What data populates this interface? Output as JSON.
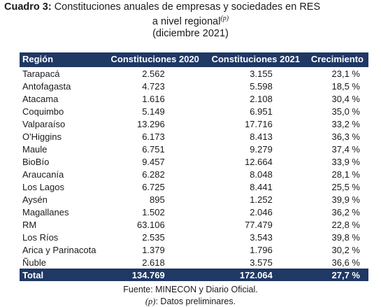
{
  "header": {
    "label": "Cuadro 3:",
    "title": "Constituciones anuales de empresas y sociedades en RES",
    "subtitle": "a nivel regional",
    "subtitle_mark": "(p)",
    "date": "(diciembre 2021)"
  },
  "table": {
    "columns": [
      "Región",
      "Constituciones 2020",
      "Constituciones 2021",
      "Crecimiento"
    ],
    "rows": [
      [
        "Tarapacá",
        "2.562",
        "3.155",
        "23,1 %"
      ],
      [
        "Antofagasta",
        "4.723",
        "5.598",
        "18,5 %"
      ],
      [
        "Atacama",
        "1.616",
        "2.108",
        "30,4 %"
      ],
      [
        "Coquimbo",
        "5.149",
        "6.951",
        "35,0 %"
      ],
      [
        "Valparaíso",
        "13.296",
        "17.716",
        "33,2 %"
      ],
      [
        "O'Higgins",
        "6.173",
        "8.413",
        "36,3 %"
      ],
      [
        "Maule",
        "6.751",
        "9.279",
        "37,4 %"
      ],
      [
        "BioBío",
        "9.457",
        "12.664",
        "33,9 %"
      ],
      [
        "Araucanía",
        "6.282",
        "8.048",
        "28,1 %"
      ],
      [
        "Los Lagos",
        "6.725",
        "8.441",
        "25,5 %"
      ],
      [
        "Aysén",
        "895",
        "1.252",
        "39,9 %"
      ],
      [
        "Magallanes",
        "1.502",
        "2.046",
        "36,2 %"
      ],
      [
        "RM",
        "63.106",
        "77.479",
        "22,8 %"
      ],
      [
        "Los Ríos",
        "2.535",
        "3.543",
        "39,8 %"
      ],
      [
        "Arica y Parinacota",
        "1.379",
        "1.796",
        "30,2 %"
      ],
      [
        "Ñuble",
        "2.618",
        "3.575",
        "36,6 %"
      ]
    ],
    "total": [
      "Total",
      "134.769",
      "172.064",
      "27,7 %"
    ]
  },
  "footer": {
    "source": "Fuente: MINECON y Diario Oficial.",
    "note_mark": "(p)",
    "note": ": Datos preliminares."
  }
}
